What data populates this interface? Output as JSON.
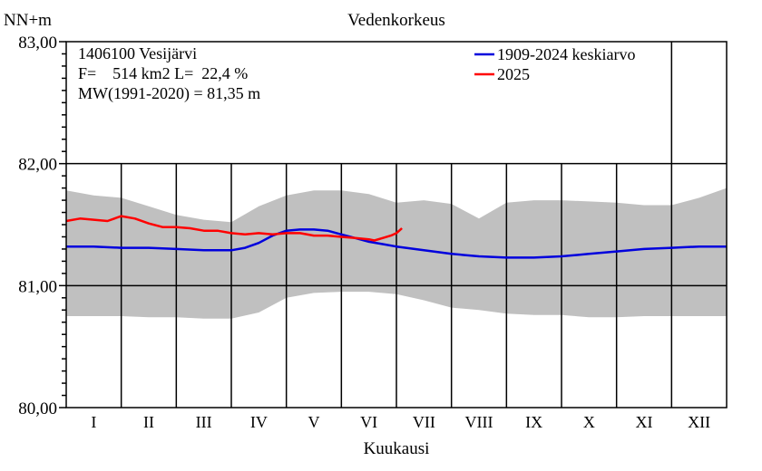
{
  "chart_data": {
    "type": "line",
    "title": "Vedenkorkeus",
    "ylabel": "NN+m",
    "xlabel": "Kuukausi",
    "ylim": [
      80.0,
      83.0
    ],
    "yticks": [
      "80,00",
      "81,00",
      "82,00",
      "83,00"
    ],
    "ytick_values": [
      80.0,
      81.0,
      82.0,
      83.0
    ],
    "xlim": [
      0,
      12
    ],
    "x_unit": "month",
    "categories": [
      "I",
      "II",
      "III",
      "IV",
      "V",
      "VI",
      "VII",
      "VIII",
      "IX",
      "X",
      "XI",
      "XII"
    ],
    "info_lines": [
      "1406100 Vesijärvi",
      "F=    514 km2 L=  22,4 %",
      "MW(1991-2020) = 81,35 m"
    ],
    "legend_position": "top-right",
    "band": {
      "fill": "#c0c0c0",
      "x": [
        0,
        0.5,
        1,
        1.5,
        2,
        2.5,
        3,
        3.5,
        4,
        4.5,
        5,
        5.5,
        6,
        6.5,
        7,
        7.5,
        8,
        8.5,
        9,
        9.5,
        10,
        10.5,
        11,
        11.5,
        12
      ],
      "upper": [
        81.78,
        81.74,
        81.72,
        81.65,
        81.58,
        81.54,
        81.52,
        81.65,
        81.74,
        81.78,
        81.78,
        81.75,
        81.68,
        81.7,
        81.67,
        81.55,
        81.68,
        81.7,
        81.7,
        81.69,
        81.68,
        81.66,
        81.66,
        81.72,
        81.8
      ],
      "lower": [
        80.75,
        80.75,
        80.75,
        80.74,
        80.74,
        80.73,
        80.73,
        80.78,
        80.9,
        80.94,
        80.95,
        80.95,
        80.93,
        80.88,
        80.82,
        80.8,
        80.77,
        80.76,
        80.76,
        80.74,
        80.74,
        80.75,
        80.75,
        80.75,
        80.75
      ]
    },
    "series": [
      {
        "name": "1909-2024 keskiarvo",
        "color": "#0000dd",
        "x": [
          0,
          0.5,
          1,
          1.5,
          2,
          2.5,
          3,
          3.25,
          3.5,
          3.75,
          4,
          4.25,
          4.5,
          4.75,
          5,
          5.25,
          5.5,
          5.75,
          6,
          6.5,
          7,
          7.5,
          8,
          8.5,
          9,
          9.5,
          10,
          10.5,
          11,
          11.5,
          12
        ],
        "y": [
          81.32,
          81.32,
          81.31,
          81.31,
          81.3,
          81.29,
          81.29,
          81.31,
          81.35,
          81.41,
          81.45,
          81.46,
          81.46,
          81.45,
          81.42,
          81.39,
          81.36,
          81.34,
          81.32,
          81.29,
          81.26,
          81.24,
          81.23,
          81.23,
          81.24,
          81.26,
          81.28,
          81.3,
          81.31,
          81.32,
          81.32
        ]
      },
      {
        "name": "2025",
        "color": "#ff0000",
        "x": [
          0,
          0.25,
          0.5,
          0.75,
          1,
          1.25,
          1.5,
          1.75,
          2,
          2.25,
          2.5,
          2.75,
          3,
          3.25,
          3.5,
          3.75,
          4,
          4.25,
          4.5,
          4.75,
          5,
          5.25,
          5.5,
          5.6,
          5.75,
          5.9,
          6.0,
          6.1
        ],
        "y": [
          81.53,
          81.55,
          81.54,
          81.53,
          81.57,
          81.55,
          81.51,
          81.48,
          81.48,
          81.47,
          81.45,
          81.45,
          81.43,
          81.42,
          81.43,
          81.42,
          81.43,
          81.43,
          81.41,
          81.41,
          81.4,
          81.39,
          81.38,
          81.37,
          81.39,
          81.41,
          81.43,
          81.47
        ]
      }
    ]
  }
}
